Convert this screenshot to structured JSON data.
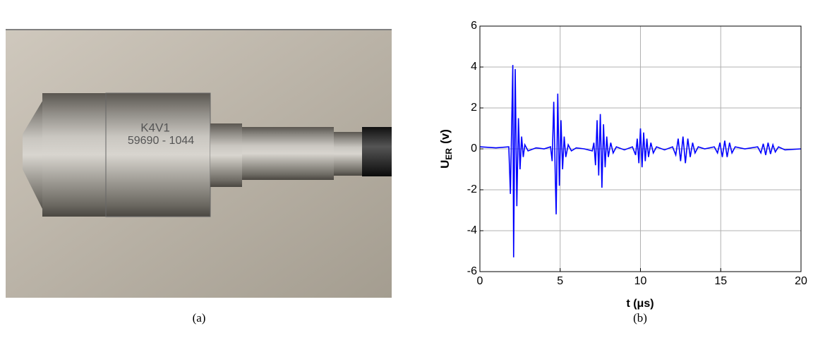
{
  "photo": {
    "engraving": [
      "K4V1",
      "59690 - 1044"
    ],
    "caption": "(a)"
  },
  "chart_data": {
    "type": "line",
    "caption": "(b)",
    "xlabel": "t (μs)",
    "ylabel": "U",
    "ylabel_sub": "ER",
    "ylabel_unit": "(v)",
    "xlim": [
      0,
      20
    ],
    "xticks": [
      0,
      5,
      10,
      15,
      20
    ],
    "ylim": [
      -6,
      6
    ],
    "yticks": [
      -6,
      -4,
      -2,
      0,
      2,
      4,
      6
    ],
    "grid": true,
    "x": [
      0,
      1,
      1.8,
      1.9,
      2.0,
      2.05,
      2.1,
      2.2,
      2.3,
      2.4,
      2.5,
      2.6,
      2.7,
      2.8,
      3.0,
      3.5,
      4.0,
      4.4,
      4.5,
      4.6,
      4.7,
      4.75,
      4.85,
      4.95,
      5.05,
      5.15,
      5.25,
      5.35,
      5.5,
      5.7,
      6.0,
      6.5,
      7.0,
      7.1,
      7.2,
      7.3,
      7.4,
      7.5,
      7.6,
      7.7,
      7.8,
      7.9,
      8.0,
      8.15,
      8.3,
      8.5,
      9.0,
      9.5,
      9.7,
      9.8,
      9.9,
      10.0,
      10.1,
      10.2,
      10.3,
      10.4,
      10.5,
      10.65,
      10.8,
      11.0,
      11.5,
      12.0,
      12.2,
      12.35,
      12.5,
      12.65,
      12.8,
      12.95,
      13.1,
      13.25,
      13.4,
      13.6,
      14.0,
      14.6,
      14.8,
      14.95,
      15.1,
      15.25,
      15.4,
      15.55,
      15.7,
      15.9,
      16.5,
      17.3,
      17.5,
      17.65,
      17.8,
      17.95,
      18.1,
      18.25,
      18.4,
      18.6,
      19.0,
      20
    ],
    "series": [
      {
        "name": "U_ER",
        "color": "#0000ff",
        "values": [
          0.1,
          0.05,
          0.1,
          -2.2,
          2.0,
          4.1,
          -5.3,
          3.9,
          -2.8,
          1.5,
          -1.0,
          0.6,
          -0.4,
          0.2,
          -0.1,
          0.05,
          0,
          0.1,
          -0.6,
          2.3,
          -1.5,
          -3.2,
          2.7,
          -1.8,
          1.4,
          -1.0,
          0.6,
          -0.4,
          0.2,
          -0.1,
          0.05,
          0,
          -0.1,
          0.3,
          -0.8,
          1.4,
          -1.3,
          1.7,
          -1.9,
          1.2,
          -0.9,
          0.6,
          -0.4,
          0.3,
          -0.2,
          0.1,
          -0.05,
          0.1,
          -0.3,
          0.5,
          -0.7,
          1.0,
          -0.9,
          0.8,
          -0.6,
          0.5,
          -0.4,
          0.3,
          -0.2,
          0.1,
          -0.05,
          0.1,
          -0.3,
          0.5,
          -0.6,
          0.6,
          -0.7,
          0.5,
          -0.4,
          0.3,
          -0.2,
          0.1,
          0,
          0.1,
          -0.2,
          0.3,
          -0.4,
          0.4,
          -0.4,
          0.3,
          -0.2,
          0.1,
          0,
          0.1,
          -0.2,
          0.25,
          -0.3,
          0.3,
          -0.25,
          0.2,
          -0.15,
          0.1,
          -0.05,
          0
        ]
      }
    ]
  }
}
